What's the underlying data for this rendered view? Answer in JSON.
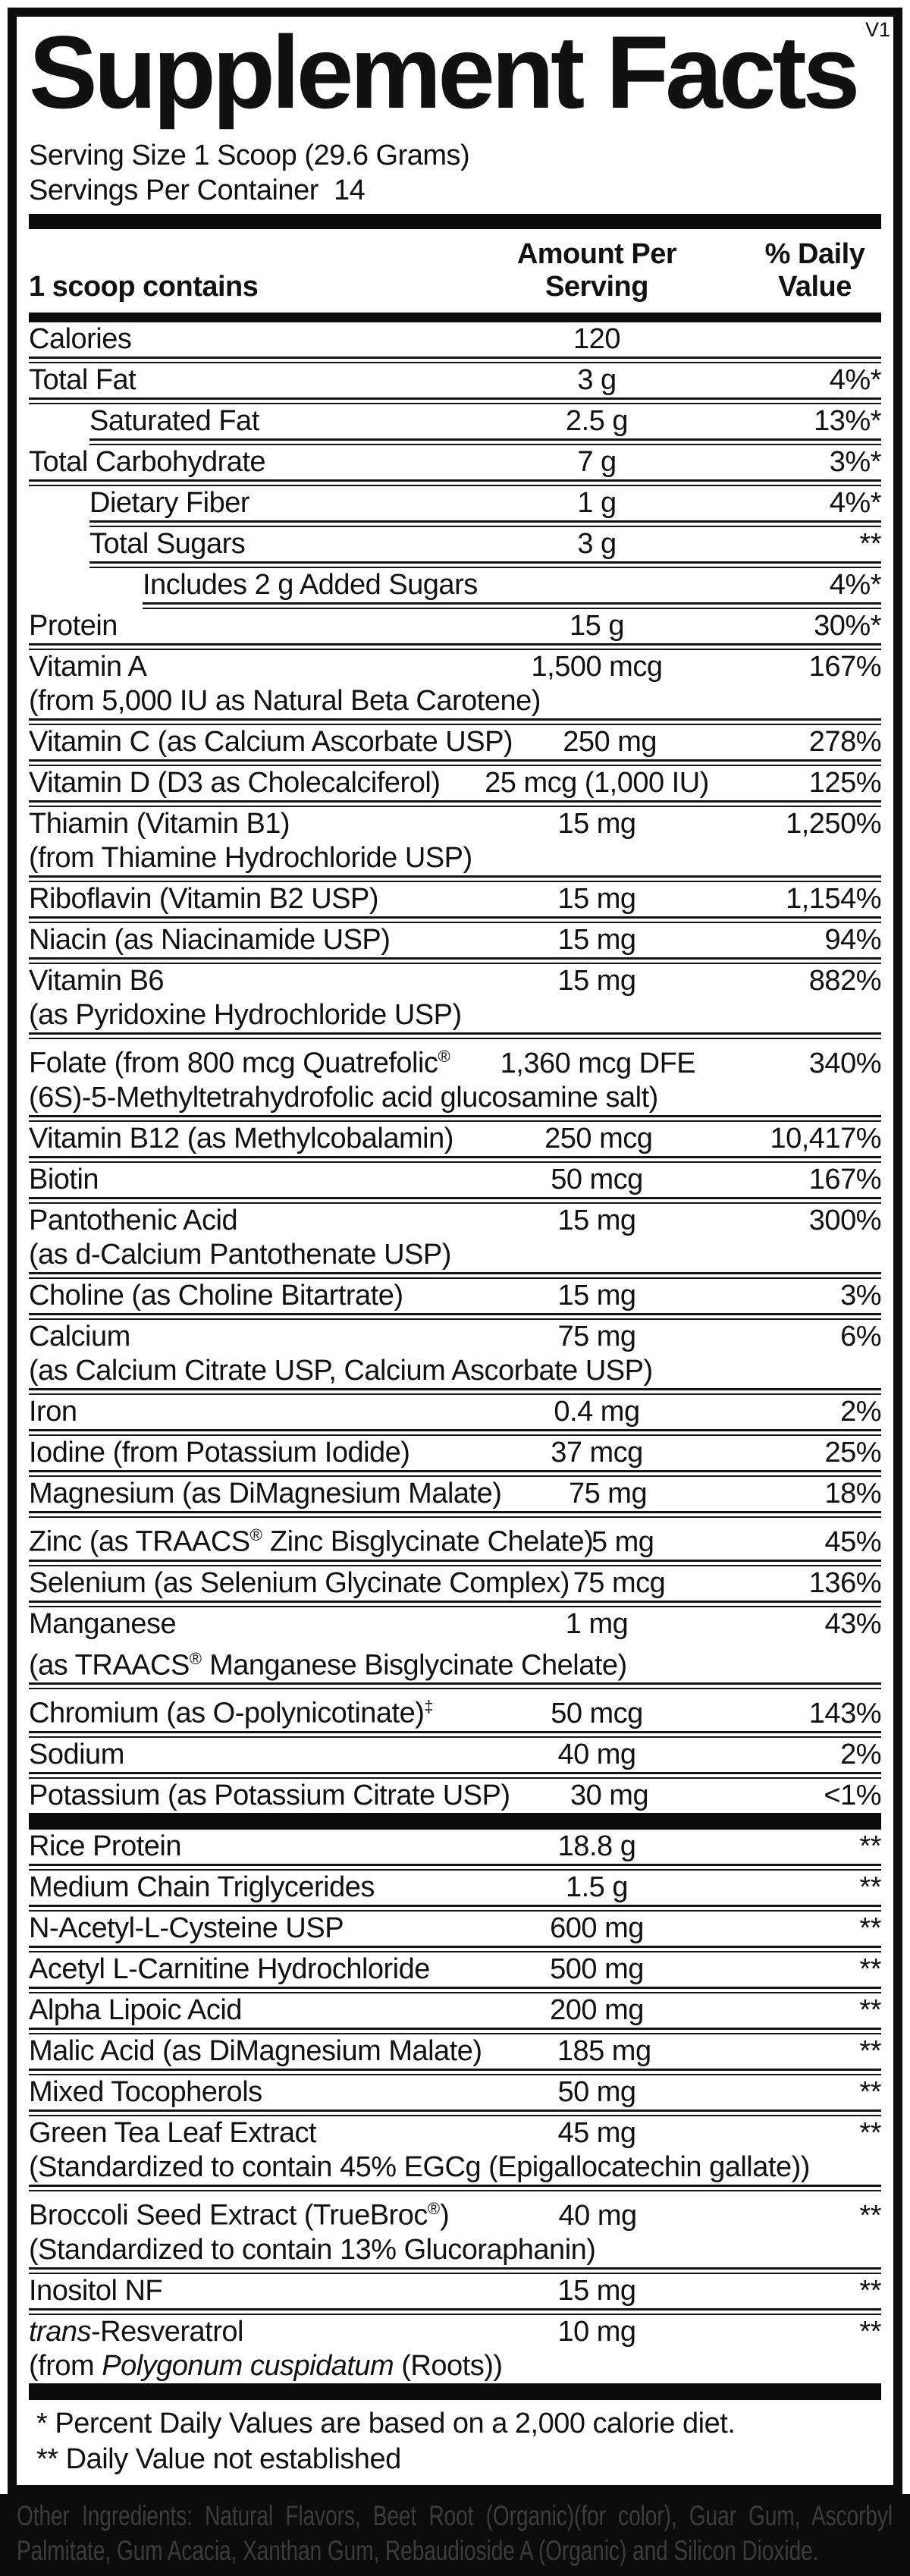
{
  "version": "V1",
  "title": "Supplement Facts",
  "serving": {
    "size": "Serving Size 1 Scoop (29.6 Grams)",
    "per_container": "Servings Per Container  14"
  },
  "columns": {
    "left": "1 scoop contains",
    "amount": [
      "Amount Per",
      "Serving"
    ],
    "dv": [
      "% Daily",
      "Value"
    ]
  },
  "table": {
    "rows": [
      {
        "name": "Calories",
        "amount": "120",
        "dv": "",
        "indent": 0
      },
      {
        "name": "Total Fat",
        "amount": "3 g",
        "dv": "4%*",
        "indent": 0
      },
      {
        "name": "Saturated Fat",
        "amount": "2.5 g",
        "dv": "13%*",
        "indent": 1
      },
      {
        "name": "Total Carbohydrate",
        "amount": "7 g",
        "dv": "3%*",
        "indent": 0
      },
      {
        "name": "Dietary Fiber",
        "amount": "1 g",
        "dv": "4%*",
        "indent": 1
      },
      {
        "name": "Total Sugars",
        "amount": "3 g",
        "dv": "**",
        "indent": 1
      },
      {
        "name": "Includes 2 g Added Sugars",
        "amount": "",
        "dv": "4%*",
        "indent": 2
      },
      {
        "name": "Protein",
        "amount": "15 g",
        "dv": "30%*",
        "indent": 0
      },
      {
        "name": "Vitamin A",
        "line2": "(from 5,000 IU as Natural Beta Carotene)",
        "amount": "1,500 mcg",
        "dv": "167%",
        "indent": 0
      },
      {
        "name": "Vitamin C (as Calcium Ascorbate USP)",
        "amount": "250 mg",
        "dv": "278%",
        "indent": 0
      },
      {
        "name": "Vitamin D (D3 as Cholecalciferol)",
        "amount": "25 mcg (1,000 IU)",
        "dv": "125%",
        "indent": 0
      },
      {
        "name": "Thiamin (Vitamin B1)",
        "line2": "(from Thiamine Hydrochloride USP)",
        "amount": "15 mg",
        "dv": "1,250%",
        "indent": 0
      },
      {
        "name": "Riboflavin (Vitamin B2 USP)",
        "amount": "15 mg",
        "dv": "1,154%",
        "indent": 0
      },
      {
        "name": "Niacin (as Niacinamide USP)",
        "amount": "15 mg",
        "dv": "94%",
        "indent": 0
      },
      {
        "name": "Vitamin B6",
        "line2": "(as Pyridoxine Hydrochloride USP)",
        "amount": "15 mg",
        "dv": "882%",
        "indent": 0
      },
      {
        "name": [
          {
            "t": "Folate (from 800 mcg Quatrefolic"
          },
          {
            "t": "®",
            "sup": true
          }
        ],
        "line2": "(6S)-5-Methyltetrahydrofolic acid glucosamine salt)",
        "amount": "1,360 mcg DFE",
        "dv": "340%",
        "indent": 0
      },
      {
        "name": "Vitamin B12 (as Methylcobalamin)",
        "amount": "250 mcg",
        "dv": "10,417%",
        "indent": 0
      },
      {
        "name": "Biotin",
        "amount": "50 mcg",
        "dv": "167%",
        "indent": 0
      },
      {
        "name": "Pantothenic Acid",
        "line2": "(as d-Calcium Pantothenate USP)",
        "amount": "15 mg",
        "dv": "300%",
        "indent": 0
      },
      {
        "name": "Choline (as Choline Bitartrate)",
        "amount": "15 mg",
        "dv": "3%",
        "indent": 0
      },
      {
        "name": "Calcium",
        "line2": "(as Calcium Citrate USP, Calcium Ascorbate USP)",
        "amount": "75 mg",
        "dv": "6%",
        "indent": 0
      },
      {
        "name": "Iron",
        "amount": "0.4 mg",
        "dv": "2%",
        "indent": 0
      },
      {
        "name": "Iodine (from Potassium Iodide)",
        "amount": "37 mcg",
        "dv": "25%",
        "indent": 0
      },
      {
        "name": "Magnesium (as DiMagnesium Malate)",
        "amount": "75 mg",
        "dv": "18%",
        "indent": 0
      },
      {
        "name": [
          {
            "t": "Zinc (as TRAACS"
          },
          {
            "t": "®",
            "sup": true
          },
          {
            "t": " Zinc Bisglycinate Chelate)"
          }
        ],
        "amount": "5 mg",
        "dv": "45%",
        "indent": 0
      },
      {
        "name": "Selenium (as Selenium Glycinate Complex)",
        "amount": "75 mcg",
        "dv": "136%",
        "indent": 0
      },
      {
        "name": "Manganese",
        "line2": [
          {
            "t": "(as TRAACS"
          },
          {
            "t": "®",
            "sup": true
          },
          {
            "t": " Manganese Bisglycinate Chelate)"
          }
        ],
        "amount": "1 mg",
        "dv": "43%",
        "indent": 0
      },
      {
        "name": [
          {
            "t": "Chromium (as O-polynicotinate)"
          },
          {
            "t": "‡",
            "sup": true
          }
        ],
        "amount": "50 mcg",
        "dv": "143%",
        "indent": 0
      },
      {
        "name": "Sodium",
        "amount": "40 mg",
        "dv": "2%",
        "indent": 0
      },
      {
        "name": "Potassium (as Potassium Citrate USP)",
        "amount": "30 mg",
        "dv": "<1%",
        "indent": 0
      },
      {
        "name": "Rice Protein",
        "amount": "18.8 g",
        "dv": "**",
        "indent": 0,
        "bar_before": true
      },
      {
        "name": "Medium Chain Triglycerides",
        "amount": "1.5 g",
        "dv": "**",
        "indent": 0
      },
      {
        "name": "N-Acetyl-L-Cysteine USP",
        "amount": "600 mg",
        "dv": "**",
        "indent": 0
      },
      {
        "name": "Acetyl L-Carnitine Hydrochloride",
        "amount": "500 mg",
        "dv": "**",
        "indent": 0
      },
      {
        "name": "Alpha Lipoic Acid",
        "amount": "200 mg",
        "dv": "**",
        "indent": 0
      },
      {
        "name": "Malic Acid (as DiMagnesium Malate)",
        "amount": "185 mg",
        "dv": "**",
        "indent": 0
      },
      {
        "name": "Mixed Tocopherols",
        "amount": "50 mg",
        "dv": "**",
        "indent": 0
      },
      {
        "name": "Green Tea Leaf Extract",
        "line2": "(Standardized to contain 45% EGCg (Epigallocatechin gallate))",
        "amount": "45 mg",
        "dv": "**",
        "indent": 0
      },
      {
        "name": [
          {
            "t": "Broccoli Seed Extract (TrueBroc"
          },
          {
            "t": "®",
            "sup": true
          },
          {
            "t": ")"
          }
        ],
        "line2": "(Standardized to contain 13% Glucoraphanin)",
        "amount": "40 mg",
        "dv": "**",
        "indent": 0
      },
      {
        "name": "Inositol NF",
        "amount": "15 mg",
        "dv": "**",
        "indent": 0
      },
      {
        "name": [
          {
            "t": "trans",
            "i": true
          },
          {
            "t": "-Resveratrol"
          }
        ],
        "line2": [
          {
            "t": "(from "
          },
          {
            "t": "Polygonum cuspidatum",
            "i": true
          },
          {
            "t": " (Roots))"
          }
        ],
        "amount": "10 mg",
        "dv": "**",
        "indent": 0
      }
    ]
  },
  "footnotes": [
    "* Percent Daily Values are based on a 2,000 calorie diet.",
    "** Daily Value not established"
  ],
  "other_ingredients": {
    "line1": "Other Ingredients: Natural Flavors, Beet Root (Organic)(for color), Guar Gum, Ascorbyl",
    "line2": "Palmitate, Gum Acacia, Xanthan Gum, Rebaudioside A (Organic) and Silicon Dioxide."
  },
  "colors": {
    "ink": "#111111",
    "bar": "#0c0c0c",
    "band_background": "#0c0c0c",
    "band_text": "#3d3d3d"
  }
}
